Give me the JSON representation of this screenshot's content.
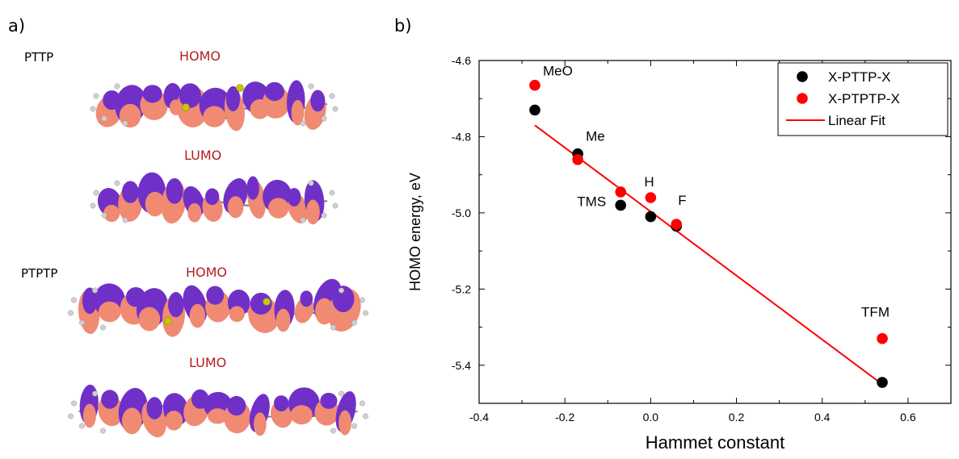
{
  "panel_a": {
    "letter": "a)",
    "molecules": [
      {
        "name": "PTTP",
        "homo_label": "HOMO",
        "lumo_label": "LUMO"
      },
      {
        "name": "PTPTP",
        "homo_label": "HOMO",
        "lumo_label": "LUMO"
      }
    ],
    "colors": {
      "lobe_positive": "#f08a72",
      "lobe_negative": "#7030c8",
      "atom_sulfur": "#c8c800",
      "atom_hydrogen": "#d0d0d0",
      "atom_carbon": "#808080"
    }
  },
  "panel_b": {
    "letter": "b)"
  },
  "chart_data": {
    "type": "scatter",
    "xlabel": "Hammet constant",
    "ylabel": "HOMO energy, eV",
    "xlim": [
      -0.4,
      0.7
    ],
    "ylim": [
      -5.5,
      -4.6
    ],
    "x_ticks": [
      "-0.4",
      "-0.2",
      "0.0",
      "0.2",
      "0.4",
      "0.6"
    ],
    "y_ticks": [
      "-4.6",
      "-4.8",
      "-5.0",
      "-5.2",
      "-5.4"
    ],
    "legend_position": "top-right",
    "series": [
      {
        "name": "X-PTTP-X",
        "color": "#000000",
        "x": [
          -0.27,
          -0.17,
          -0.07,
          0.0,
          0.06,
          0.54
        ],
        "y": [
          -4.73,
          -4.845,
          -4.98,
          -5.01,
          -5.035,
          -5.445
        ]
      },
      {
        "name": "X-PTPTP-X",
        "color": "#ff0000",
        "x": [
          -0.27,
          -0.17,
          -0.07,
          0.0,
          0.06,
          0.54
        ],
        "y": [
          -4.665,
          -4.86,
          -4.945,
          -4.96,
          -5.03,
          -5.33
        ]
      }
    ],
    "fit": {
      "name": "Linear Fit",
      "color": "#ff0000",
      "x": [
        -0.27,
        0.54
      ],
      "y": [
        -4.77,
        -5.45
      ]
    },
    "annotations": [
      {
        "text": "MeO",
        "x": -0.27,
        "y": -4.665
      },
      {
        "text": "Me",
        "x": -0.17,
        "y": -4.845
      },
      {
        "text": "TMS",
        "x": -0.07,
        "y": -4.97
      },
      {
        "text": "H",
        "x": 0.0,
        "y": -4.96
      },
      {
        "text": "F",
        "x": 0.06,
        "y": -5.03
      },
      {
        "text": "TFM",
        "x": 0.54,
        "y": -5.33
      }
    ]
  }
}
